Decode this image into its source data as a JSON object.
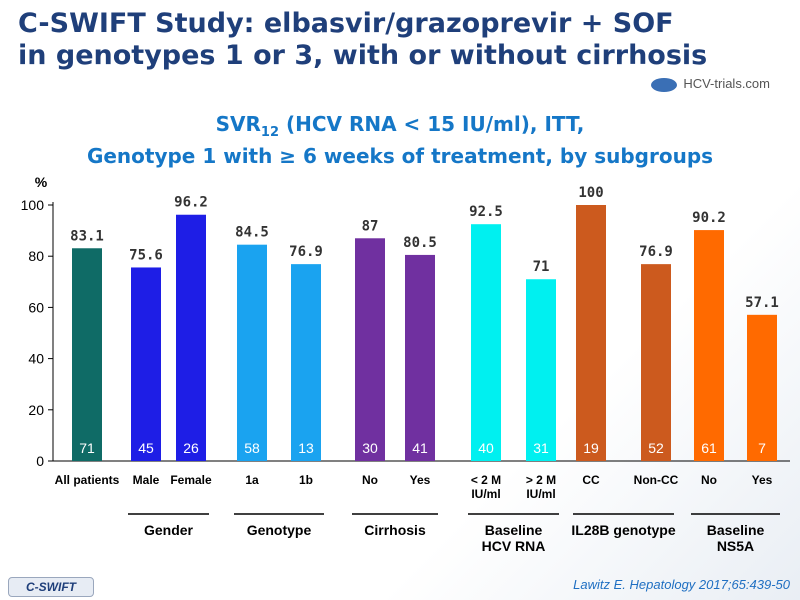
{
  "title": {
    "line1": "C-SWIFT Study: elbasvir/grazoprevir + SOF",
    "line2": "in genotypes 1 or 3, with or without cirrhosis"
  },
  "brand": "HCV-trials.com",
  "subtitle": {
    "line1_main": "SVR",
    "line1_sub": "12",
    "line1_rest": " (HCV RNA < 15 IU/ml), ITT,",
    "line2": "Genotype 1 with ≥ 6 weeks of treatment, by subgroups"
  },
  "footer": {
    "study_tag": "C-SWIFT",
    "citation": "Lawitz E. Hepatology 2017;65:439-50"
  },
  "chart_data": {
    "type": "bar",
    "ylabel": "%",
    "ylim": [
      0,
      100
    ],
    "yticks": [
      "0",
      "20",
      "40",
      "60",
      "80",
      "100"
    ],
    "bars": [
      {
        "label": "All patients",
        "value": 83.1,
        "value_text": "83.1",
        "n": "71",
        "color": "#0f6b66"
      },
      {
        "label": "Male",
        "value": 75.6,
        "value_text": "75.6",
        "n": "45",
        "color": "#1e1ee6"
      },
      {
        "label": "Female",
        "value": 96.2,
        "value_text": "96.2",
        "n": "26",
        "color": "#1e1ee6"
      },
      {
        "label": "1a",
        "value": 84.5,
        "value_text": "84.5",
        "n": "58",
        "color": "#1aa3f0"
      },
      {
        "label": "1b",
        "value": 76.9,
        "value_text": "76.9",
        "n": "13",
        "color": "#1aa3f0"
      },
      {
        "label": "No",
        "value": 87,
        "value_text": "87",
        "n": "30",
        "color": "#7030a0"
      },
      {
        "label": "Yes",
        "value": 80.5,
        "value_text": "80.5",
        "n": "41",
        "color": "#7030a0"
      },
      {
        "label": "< 2 M IU/ml",
        "label_lines": [
          "< 2 M",
          "IU/ml"
        ],
        "value": 92.5,
        "value_text": "92.5",
        "n": "40",
        "color": "#00f0f0"
      },
      {
        "label": "> 2 M IU/ml",
        "label_lines": [
          "> 2 M",
          "IU/ml"
        ],
        "value": 71,
        "value_text": "71",
        "n": "31",
        "color": "#00f0f0"
      },
      {
        "label": "CC",
        "value": 100,
        "value_text": "100",
        "n": "19",
        "color": "#cc5a1e"
      },
      {
        "label": "Non-CC",
        "value": 76.9,
        "value_text": "76.9",
        "n": "52",
        "color": "#cc5a1e"
      },
      {
        "label": "No",
        "value": 90.2,
        "value_text": "90.2",
        "n": "61",
        "color": "#ff6a00"
      },
      {
        "label": "Yes",
        "value": 57.1,
        "value_text": "57.1",
        "n": "7",
        "color": "#ff6a00"
      }
    ],
    "groups": [
      {
        "name_lines": [
          "Gender"
        ],
        "bars": [
          1,
          2
        ]
      },
      {
        "name_lines": [
          "Genotype"
        ],
        "bars": [
          3,
          4
        ]
      },
      {
        "name_lines": [
          "Cirrhosis"
        ],
        "bars": [
          5,
          6
        ]
      },
      {
        "name_lines": [
          "Baseline",
          "HCV RNA"
        ],
        "bars": [
          7,
          8
        ]
      },
      {
        "name_lines": [
          "IL28B genotype"
        ],
        "bars": [
          9,
          10
        ]
      },
      {
        "name_lines": [
          "Baseline",
          "NS5A"
        ],
        "bars": [
          11,
          12
        ]
      }
    ]
  }
}
